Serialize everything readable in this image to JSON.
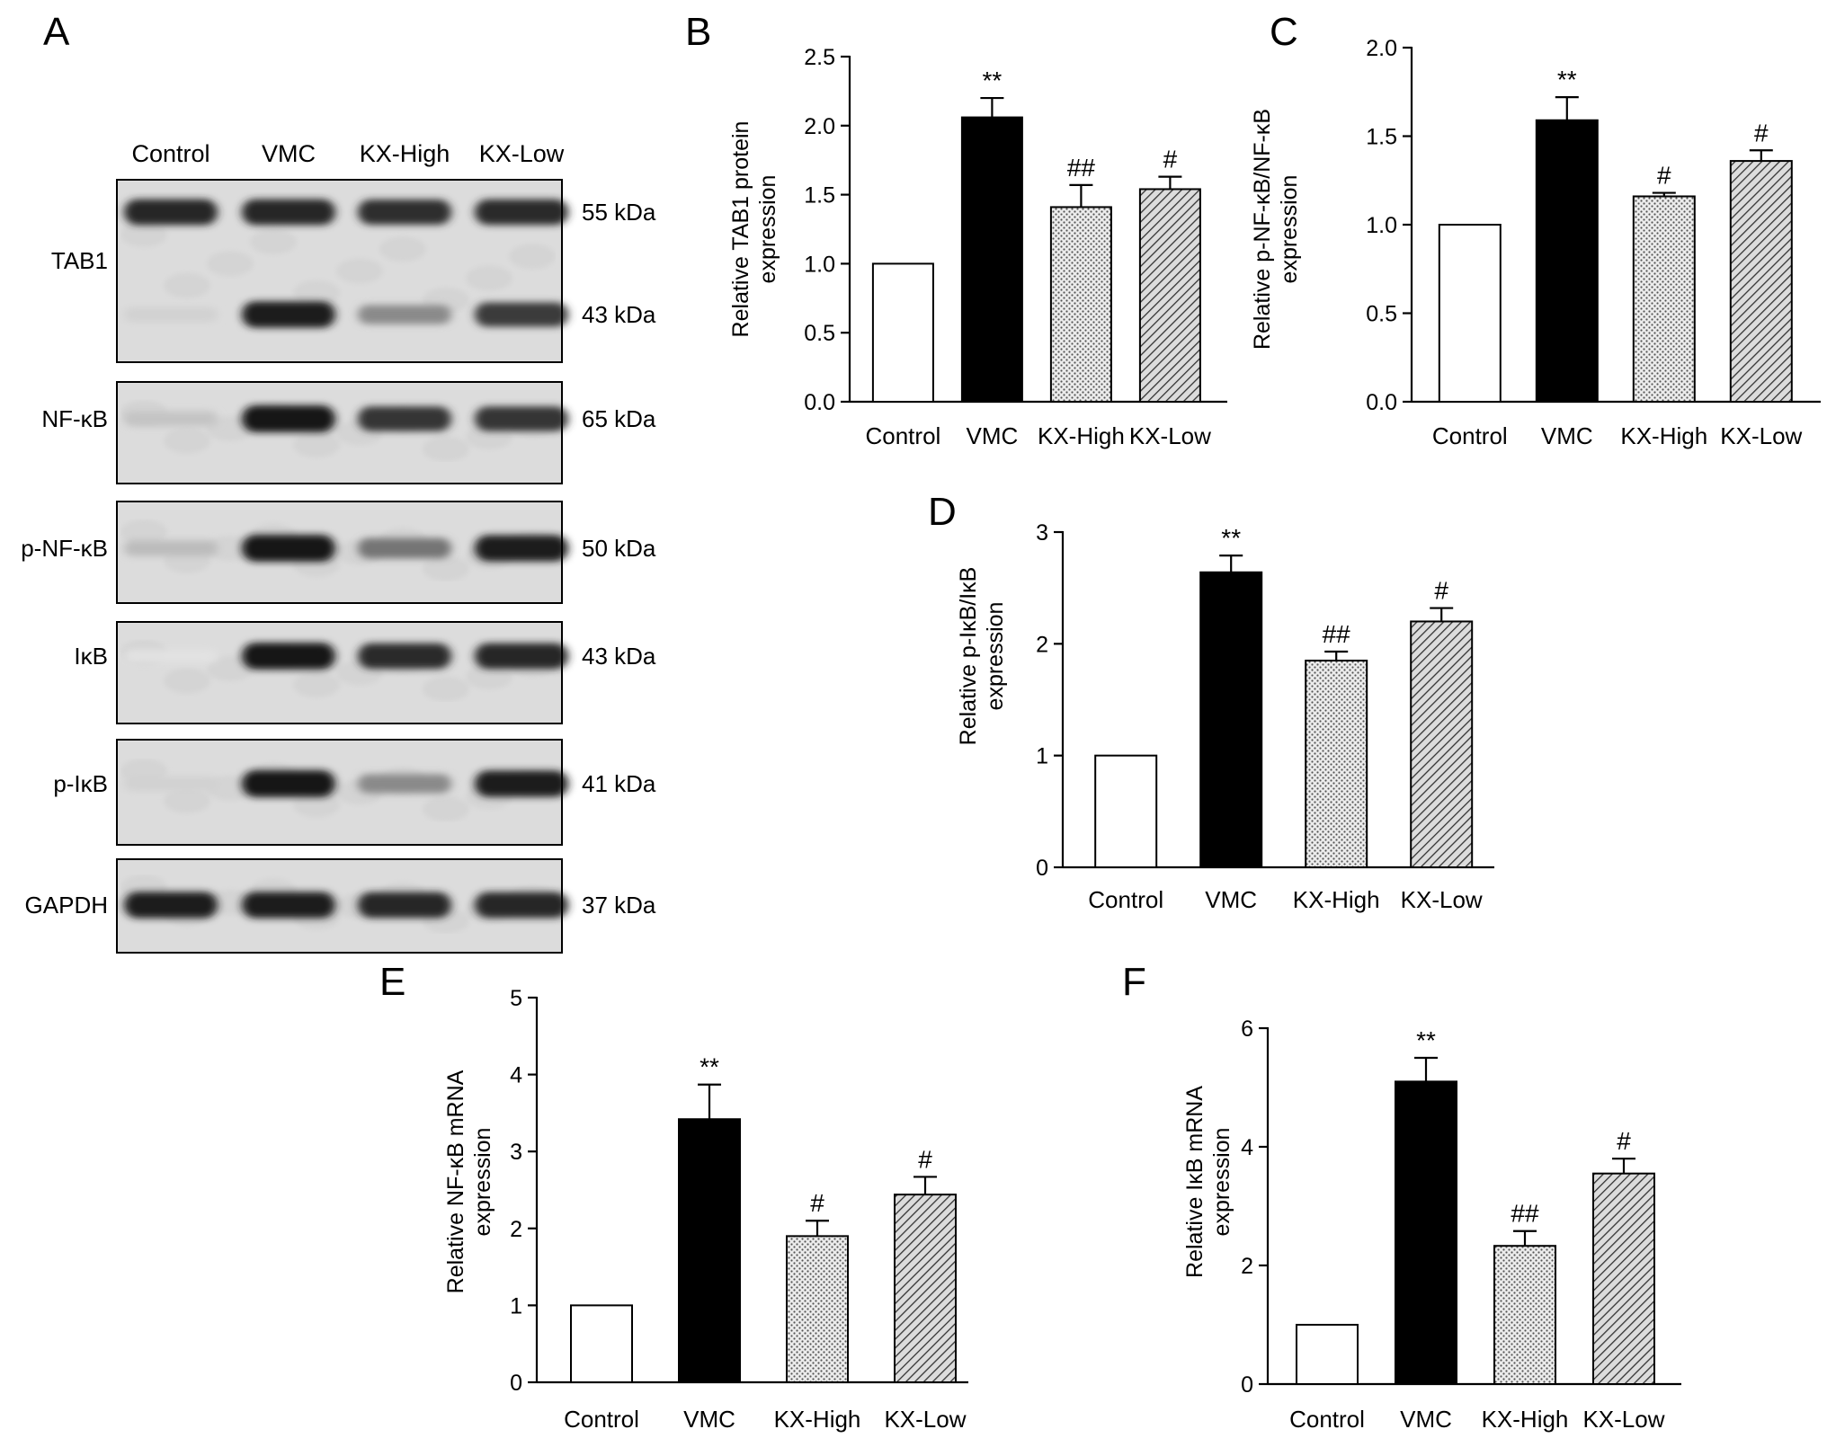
{
  "panels": {
    "A": "A",
    "B": "B",
    "C": "C",
    "D": "D",
    "E": "E",
    "F": "F"
  },
  "blot": {
    "lanes": [
      "Control",
      "VMC",
      "KX-High",
      "KX-Low"
    ],
    "rows": [
      {
        "protein": "TAB1",
        "bands": [
          {
            "kda": "55 kDa",
            "intensity": [
              0.92,
              0.92,
              0.88,
              0.9
            ]
          },
          {
            "kda": "43 kDa",
            "intensity": [
              0.12,
              0.95,
              0.45,
              0.82
            ]
          }
        ]
      },
      {
        "protein": "NF-κB",
        "bands": [
          {
            "kda": "65 kDa",
            "intensity": [
              0.18,
              1.0,
              0.85,
              0.85
            ]
          }
        ]
      },
      {
        "protein": "p-NF-κB",
        "bands": [
          {
            "kda": "50 kDa",
            "intensity": [
              0.22,
              1.0,
              0.55,
              0.95
            ]
          }
        ]
      },
      {
        "protein": "IκB",
        "bands": [
          {
            "kda": "43 kDa",
            "intensity": [
              0.04,
              0.98,
              0.9,
              0.92
            ]
          }
        ]
      },
      {
        "protein": "p-IκB",
        "bands": [
          {
            "kda": "41 kDa",
            "intensity": [
              0.12,
              1.0,
              0.45,
              0.95
            ]
          }
        ]
      },
      {
        "protein": "GAPDH",
        "bands": [
          {
            "kda": "37 kDa",
            "intensity": [
              0.95,
              0.95,
              0.92,
              0.92
            ]
          }
        ]
      }
    ]
  },
  "chart_data": [
    {
      "panel": "B",
      "type": "bar",
      "categories": [
        "Control",
        "VMC",
        "KX-High",
        "KX-Low"
      ],
      "values": [
        1.0,
        2.06,
        1.41,
        1.54
      ],
      "errors": [
        0,
        0.14,
        0.16,
        0.09
      ],
      "annotations": [
        "",
        "**",
        "##",
        "#"
      ],
      "ylabel": "Relative TAB1 protein expression",
      "ylim": [
        0,
        2.5
      ],
      "yticks": [
        "0.0",
        "0.5",
        "1.0",
        "1.5",
        "2.0",
        "2.5"
      ]
    },
    {
      "panel": "C",
      "type": "bar",
      "categories": [
        "Control",
        "VMC",
        "KX-High",
        "KX-Low"
      ],
      "values": [
        1.0,
        1.59,
        1.16,
        1.36
      ],
      "errors": [
        0,
        0.13,
        0.02,
        0.06
      ],
      "annotations": [
        "",
        "**",
        "#",
        "#"
      ],
      "ylabel": "Relative p-NF-κB/NF-κB expression",
      "ylim": [
        0,
        2.0
      ],
      "yticks": [
        "0.0",
        "0.5",
        "1.0",
        "1.5",
        "2.0"
      ]
    },
    {
      "panel": "D",
      "type": "bar",
      "categories": [
        "Control",
        "VMC",
        "KX-High",
        "KX-Low"
      ],
      "values": [
        1.0,
        2.64,
        1.85,
        2.2
      ],
      "errors": [
        0,
        0.15,
        0.08,
        0.12
      ],
      "annotations": [
        "",
        "**",
        "##",
        "#"
      ],
      "ylabel": "Relative p-IκB/IκB expression",
      "ylim": [
        0,
        3
      ],
      "yticks": [
        "0",
        "1",
        "2",
        "3"
      ]
    },
    {
      "panel": "E",
      "type": "bar",
      "categories": [
        "Control",
        "VMC",
        "KX-High",
        "KX-Low"
      ],
      "values": [
        1.0,
        3.42,
        1.9,
        2.44
      ],
      "errors": [
        0,
        0.45,
        0.2,
        0.23
      ],
      "annotations": [
        "",
        "**",
        "#",
        "#"
      ],
      "ylabel": "Relative NF-κB mRNA expression",
      "ylim": [
        0,
        5
      ],
      "yticks": [
        "0",
        "1",
        "2",
        "3",
        "4",
        "5"
      ]
    },
    {
      "panel": "F",
      "type": "bar",
      "categories": [
        "Control",
        "VMC",
        "KX-High",
        "KX-Low"
      ],
      "values": [
        1.0,
        5.1,
        2.33,
        3.55
      ],
      "errors": [
        0,
        0.4,
        0.25,
        0.25
      ],
      "annotations": [
        "",
        "**",
        "##",
        "#"
      ],
      "ylabel": "Relative IκB mRNA expression",
      "ylim": [
        0,
        6
      ],
      "yticks": [
        "0",
        "2",
        "4",
        "6"
      ]
    }
  ]
}
